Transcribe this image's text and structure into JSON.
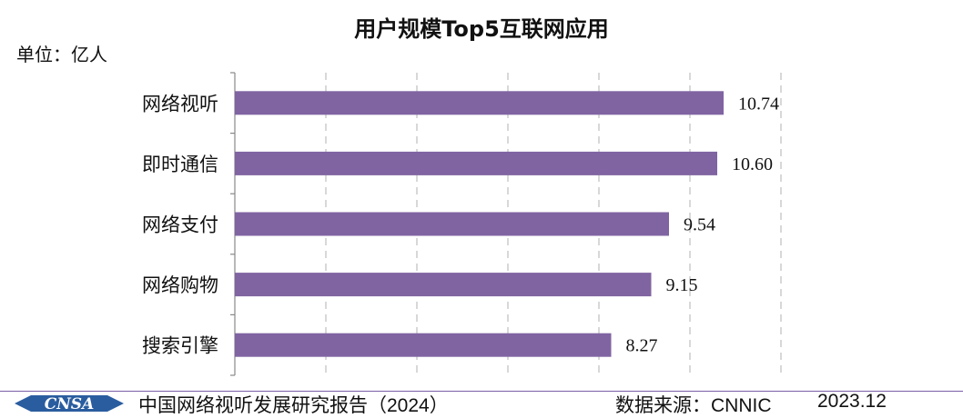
{
  "chart_data": {
    "type": "bar",
    "orientation": "horizontal",
    "title": "用户规模Top5互联网应用",
    "unit_label": "单位：亿人",
    "categories": [
      "网络视听",
      "即时通信",
      "网络支付",
      "网络购物",
      "搜索引擎"
    ],
    "values": [
      10.74,
      10.6,
      9.54,
      9.15,
      8.27
    ],
    "value_labels": [
      "10.74",
      "10.60",
      "9.54",
      "9.15",
      "8.27"
    ],
    "xlim": [
      0,
      12
    ],
    "grid": true,
    "bar_color": "#8064a2"
  },
  "footer": {
    "logo_text": "CNSA",
    "report": "中国网络视听发展研究报告",
    "year": "（2024）",
    "source_label": "数据来源：",
    "source_value": "CNNIC",
    "date": "2023.12"
  }
}
